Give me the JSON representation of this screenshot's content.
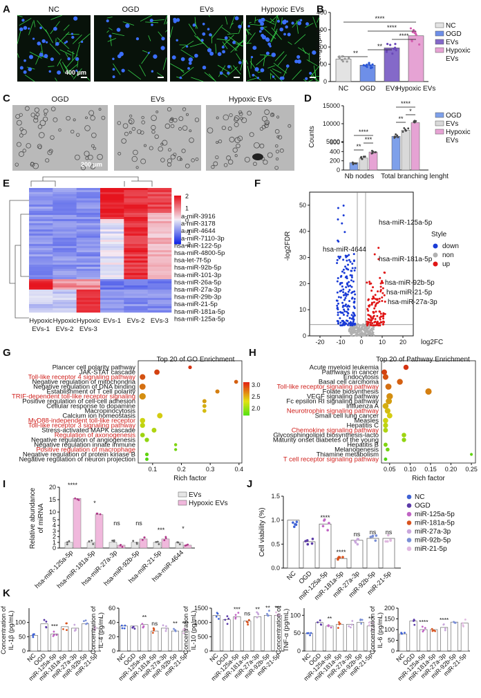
{
  "panels": [
    "A",
    "B",
    "C",
    "D",
    "E",
    "F",
    "G",
    "H",
    "I",
    "J",
    "K"
  ],
  "panelA": {
    "labels": [
      "NC",
      "OGD",
      "EVs",
      "Hypoxic EVs"
    ],
    "scale": "400 μm",
    "colors": {
      "bg": "#08120a",
      "neurite": "#36d24a",
      "nucleus": "#3b6fff"
    }
  },
  "panelB": {
    "chart_data": {
      "type": "bar",
      "categories": [
        "NC",
        "OGD",
        "EVs",
        "Hypoxic EVs"
      ],
      "values": [
        130,
        95,
        195,
        265
      ],
      "ylabel": "Length(μm)",
      "ylim": [
        0,
        400
      ],
      "yticks": [
        "0",
        "100",
        "200",
        "300",
        "400"
      ],
      "legend": [
        "NC",
        "OGD",
        "EVs",
        "Hypoxic EVs"
      ],
      "colors": [
        "#e3e3e3",
        "#6e8fe8",
        "#8469c9",
        "#e6a3d4"
      ],
      "sig": [
        "**",
        "****",
        "****",
        "**",
        "****"
      ]
    }
  },
  "panelC": {
    "labels": [
      "OGD",
      "EVs",
      "Hypoxic EVs"
    ],
    "scale": "200 μm"
  },
  "panelD": {
    "chart_data": {
      "type": "bar",
      "groups": [
        "Nb nodes",
        "Total branching lenght"
      ],
      "series": [
        {
          "name": "OGD",
          "values": [
            160,
            6500
          ]
        },
        {
          "name": "EVs",
          "values": [
            260,
            8200
          ]
        },
        {
          "name": "Hypoxic EVs",
          "values": [
            390,
            10300
          ]
        }
      ],
      "ylabel": "Counts",
      "yticks_top": [
        "5000",
        "10000",
        "15000"
      ],
      "yticks_bottom": [
        "0",
        "200",
        "400",
        "600"
      ],
      "colors": [
        "#7ea0ea",
        "#d9d9d9",
        "#e6a3d4"
      ],
      "sig": [
        "**",
        "***",
        "****",
        "**",
        "*",
        "****"
      ]
    }
  },
  "panelE": {
    "columns": [
      "Hypoxic EVs-1",
      "Hypoxic EVs-2",
      "Hypoxic EVs-3",
      "EVs-1",
      "EVs-2",
      "EVs-3"
    ],
    "col_line1": [
      "Hypoxic",
      "Hypoxic",
      "Hypoxic",
      "EVs-1",
      "EVs-2",
      "EVs-3"
    ],
    "col_line2": [
      "EVs-1",
      "EVs-2",
      "EVs-3",
      "",
      "",
      ""
    ],
    "genes": [
      "hsa-miR-3916",
      "hsa-miR-3178",
      "hsa-miR-4644",
      "hsa-miR-7110-3p",
      "hsa-miR-122-5p",
      "hsa-miR-4800-5p",
      "hsa-let-7f-5p",
      "hsa-miR-92b-5p",
      "hsa-miR-101-3p",
      "hsa-miR-26a-5p",
      "hsa-miR-27a-3p",
      "hsa-miR-29b-3p",
      "hsa-miR-21-5p",
      "hsa-miR-181a-5p",
      "hsa-miR-125a-5p"
    ],
    "colorbar": [
      "2",
      "1",
      "0",
      "-1",
      "-2"
    ]
  },
  "panelF": {
    "chart_data": {
      "type": "scatter",
      "xlabel": "log2FC",
      "ylabel": "-log2FDR",
      "xticks": [
        "-20",
        "-10",
        "0",
        "10",
        "20"
      ],
      "yticks": [
        "0",
        "10",
        "20",
        "30",
        "40",
        "50"
      ],
      "legend_title": "Style",
      "legend": [
        "down",
        "non",
        "up"
      ],
      "colors": [
        "#1a3bd6",
        "#b0b0b0",
        "#e01515"
      ],
      "annotations": [
        "hsa-miR-125a-5p",
        "hsa-miR-4644",
        "hsa-miR-181a-5p",
        "hsa-miR-92b-5p",
        "hsa-miR-21-5p",
        "hsa-miR-27a-3p"
      ]
    }
  },
  "panelG": {
    "title": "Top 20 of GO Enrichment",
    "xlabel": "Rich factor",
    "xticks": [
      "0.1",
      "0.2",
      "0.3",
      "0.4"
    ],
    "colorbar": [
      "3.0",
      "2.5",
      "2.0"
    ],
    "terms": [
      {
        "t": "Plancer cell polarity pathway",
        "red": false,
        "x": 0.23
      },
      {
        "t": "JAK-STAT cascade",
        "red": false,
        "x": 0.115
      },
      {
        "t": "Toll-like receptor 4 signaling pathway",
        "red": true,
        "x": 0.065
      },
      {
        "t": "Negative regulation of mitochondria",
        "red": false,
        "x": 0.39
      },
      {
        "t": "Negative regulation of DNA binding",
        "red": false,
        "x": 0.065
      },
      {
        "t": "Establishment of T cell polarity",
        "red": false,
        "x": 0.325
      },
      {
        "t": "TRIF-dependent toll-like receptor signaling",
        "red": true,
        "x": 0.065
      },
      {
        "t": "Positive regulation of cell-cell adhesion",
        "red": false,
        "x": 0.28
      },
      {
        "t": "Cellular response to dopamine",
        "red": false,
        "x": 0.28
      },
      {
        "t": "Macropinocytosis",
        "red": false,
        "x": 0.28
      },
      {
        "t": "Calcium ion homeostasis",
        "red": false,
        "x": 0.125
      },
      {
        "t": "MyD88-independent toll-like receptor",
        "red": true,
        "x": 0.065
      },
      {
        "t": "Toll-like receptor 3 signaling pathway",
        "red": true,
        "x": 0.065
      },
      {
        "t": "Stress-activated MAPK cascade",
        "red": false,
        "x": 0.105
      },
      {
        "t": "Regulation of axonogenesis",
        "red": true,
        "x": 0.065
      },
      {
        "t": "Negative regulation of angiogenesis",
        "red": false,
        "x": 0.08
      },
      {
        "t": "Negative regulation innate immune",
        "red": false,
        "x": 0.18
      },
      {
        "t": "Positive regulation of macrophage",
        "red": true,
        "x": 0.18
      },
      {
        "t": "Negative regulation of protein kinase B",
        "red": false,
        "x": 0.08
      },
      {
        "t": "Negative regulation of neuron projection",
        "red": false,
        "x": 0.08
      }
    ]
  },
  "panelH": {
    "title": "Top 20 of Pathway Enrichment",
    "xlabel": "Rich factor",
    "xticks": [
      "0.05",
      "0.10",
      "0.15",
      "0.20",
      "0.25"
    ],
    "terms": [
      {
        "t": "Acute myeloid leukemia",
        "red": false,
        "x": 0.09
      },
      {
        "t": "Pathways in cancer",
        "red": false,
        "x": 0.037
      },
      {
        "t": "Endocytosis",
        "red": false,
        "x": 0.04
      },
      {
        "t": "Basal cell carcinoma",
        "red": false,
        "x": 0.075
      },
      {
        "t": "Toll-like receptor signaling pathway",
        "red": true,
        "x": 0.047
      },
      {
        "t": "Folate biosynthesis",
        "red": false,
        "x": 0.145
      },
      {
        "t": "VEGF signaling pathway",
        "red": false,
        "x": 0.05
      },
      {
        "t": "Fc epsilon RI signaling pathway",
        "red": false,
        "x": 0.048
      },
      {
        "t": "Influenza A",
        "red": false,
        "x": 0.04
      },
      {
        "t": "Neurotrophin signaling pathway",
        "red": true,
        "x": 0.045
      },
      {
        "t": "Small cell lung cancer",
        "red": false,
        "x": 0.05
      },
      {
        "t": "Measles",
        "red": false,
        "x": 0.04
      },
      {
        "t": "Hepatitis C",
        "red": false,
        "x": 0.04
      },
      {
        "t": "Chemokine signaling pathway",
        "red": true,
        "x": 0.04
      },
      {
        "t": "Glycosphingolipid biosynthesis-lacto",
        "red": false,
        "x": 0.085
      },
      {
        "t": "Maturity onset diabetes of the young",
        "red": false,
        "x": 0.085
      },
      {
        "t": "Hepatitis B",
        "red": false,
        "x": 0.04
      },
      {
        "t": "Melanogenesis",
        "red": false,
        "x": 0.045
      },
      {
        "t": "Thiamine metabolism",
        "red": false,
        "x": 0.25
      },
      {
        "t": "T cell receptor signaling pathway",
        "red": true,
        "x": 0.04
      }
    ]
  },
  "panelI": {
    "chart_data": {
      "type": "bar",
      "categories": [
        "hsa-miR-125a-5p",
        "hsa-miR-181a-5p",
        "hsa-miR-27a-3p",
        "hsa-miR-92b-5p",
        "hsa-miR-21-5p",
        "hsa-miR-4644"
      ],
      "series": [
        {
          "name": "EVs",
          "values": [
            1,
            1,
            1,
            1,
            1,
            1
          ]
        },
        {
          "name": "Hypoxic EVs",
          "values": [
            15.5,
            9,
            0.5,
            1.6,
            1.6,
            0.5
          ]
        }
      ],
      "ylabel": "Relative abundance of miRNA",
      "ylabel_lines": [
        "Relative abundance",
        "of miRNA"
      ],
      "yticks_top": [
        "10",
        "15",
        "20"
      ],
      "yticks_bottom": [
        "0",
        "1",
        "2",
        "3",
        "4",
        "5"
      ],
      "sig": [
        "****",
        "*",
        "ns",
        "ns",
        "***",
        "*"
      ],
      "colors": [
        "#e6e6e6",
        "#f0b8dc"
      ]
    }
  },
  "panelJ": {
    "chart_data": {
      "type": "bar",
      "categories": [
        "NC",
        "OGD",
        "miR-125a-5p",
        "miR-181a-5p",
        "miR-27a-3p",
        "miR-92b-5p",
        "miR-21-5p"
      ],
      "values": [
        1.0,
        0.55,
        0.92,
        0.2,
        0.58,
        0.62,
        0.62
      ],
      "ylabel": "Cell viability (%)",
      "yticks": [
        "0.0",
        "0.5",
        "1.0",
        "1.5"
      ],
      "ylim": [
        0,
        1.5
      ],
      "sig": [
        "",
        "",
        "****",
        "****",
        "ns",
        "ns",
        "ns"
      ],
      "legend": [
        "NC",
        "OGD",
        "miR-125a-5p",
        "miR-181a-5p",
        "miR-27a-3p",
        "miR-92b-5p",
        "miR-21-5p"
      ],
      "colors": [
        "#3f62d4",
        "#5b3aa8",
        "#c064c4",
        "#d9531e",
        "#c9a7dc",
        "#7a8fd6",
        "#e0b8e0"
      ]
    }
  },
  "panelK": {
    "categories": [
      "NC",
      "OGD",
      "miR-125a-5p",
      "miR-181a-5p",
      "miR-27a-3p",
      "miR-92b-5p",
      "miR-21-5p"
    ],
    "charts": [
      {
        "ylabel": "Concentration of IL-1β (pg/mL)",
        "ylab1": "Concentration of",
        "ylab2": "IL-1β (pg/mL)",
        "yticks": [
          "0",
          "50",
          "100"
        ],
        "ymax": 150,
        "values": [
          55,
          95,
          60,
          85,
          80,
          95,
          80
        ],
        "sig": [
          "",
          "",
          "***",
          "",
          "",
          "",
          ""
        ]
      },
      {
        "ylabel": "Concentration of IL-4 (pg/mL)",
        "ylab1": "Concentration of",
        "ylab2": "IL-4 (pg/mL)",
        "yticks": [
          "0",
          "20",
          "40",
          "60"
        ],
        "ymax": 60,
        "values": [
          35,
          35,
          37,
          28,
          32,
          28,
          28
        ],
        "sig": [
          "",
          "",
          "**",
          "ns",
          "",
          "**",
          "***"
        ]
      },
      {
        "ylabel": "Concentration of IL-10 (pg/mL)",
        "ylab1": "Concentration of",
        "ylab2": "IL-10 (pg/mL)",
        "yticks": [
          "0",
          "500",
          "1000",
          "1500"
        ],
        "ymax": 1500,
        "values": [
          1250,
          1100,
          1200,
          1050,
          1200,
          1250,
          1250
        ],
        "sig": [
          "",
          "",
          "***",
          "ns",
          "**",
          "**",
          "***"
        ]
      },
      {
        "ylabel": "Concentration of TNF-α (pg/mL)",
        "ylab1": "Concentration of",
        "ylab2": "TNF-α (pg/mL)",
        "yticks": [
          "0",
          "50",
          "100"
        ],
        "ymax": 120,
        "values": [
          50,
          80,
          70,
          75,
          75,
          80,
          70
        ],
        "sig": [
          "",
          "",
          "**",
          "",
          "",
          "",
          "**"
        ]
      },
      {
        "ylabel": "Concentration of IL-6 (pg/mL)",
        "ylab1": "Concentration of",
        "ylab2": "IL-6 (pg/mL)",
        "yticks": [
          "0",
          "50",
          "100",
          "150",
          "200"
        ],
        "ymax": 200,
        "values": [
          80,
          140,
          100,
          100,
          110,
          135,
          130
        ],
        "sig": [
          "",
          "",
          "****",
          "",
          "****",
          "",
          ""
        ]
      }
    ]
  }
}
